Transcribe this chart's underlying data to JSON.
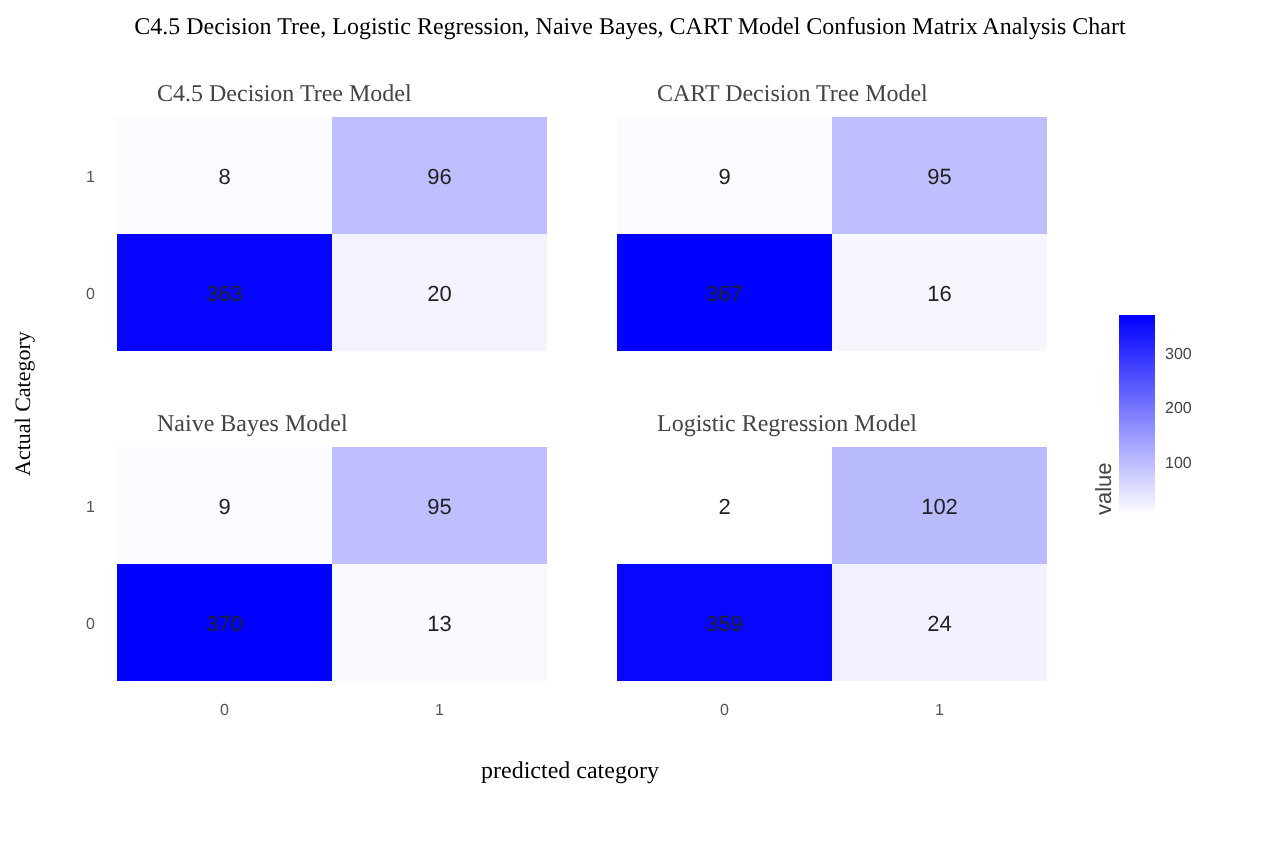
{
  "chart_data": [
    {
      "type": "heatmap",
      "title": "C4.5 Decision Tree Model",
      "annotations": [
        "C4.5 Decision Tree, Logistic Regression, Naive Bayes, CART Model Confusion Matrix Analysis Chart"
      ],
      "ylabel": "Actual Category",
      "categories": [
        "0",
        "1"
      ],
      "y_categories": [
        "1",
        "0"
      ],
      "cells": [
        [
          8,
          96
        ],
        [
          363,
          20
        ]
      ],
      "data_labels": true,
      "tick_labels": "y"
    },
    {
      "type": "heatmap",
      "title": "CART Decision Tree Model",
      "categories": [
        "0",
        "1"
      ],
      "y_categories": [
        "1",
        "0"
      ],
      "cells": [
        [
          9,
          95
        ],
        [
          367,
          16
        ]
      ],
      "data_labels": true,
      "tick_labels": false
    },
    {
      "type": "heatmap",
      "title": "Naive Bayes Model",
      "categories": [
        "0",
        "1"
      ],
      "y_categories": [
        "1",
        "0"
      ],
      "cells": [
        [
          9,
          95
        ],
        [
          370,
          13
        ]
      ],
      "data_labels": true
    },
    {
      "type": "heatmap",
      "title": "Logistic Regression Model",
      "xlabel": "predicted category",
      "categories": [
        "0",
        "1"
      ],
      "y_categories": [
        "1",
        "0"
      ],
      "cells": [
        [
          2,
          102
        ],
        [
          359,
          24
        ]
      ],
      "data_labels": true,
      "clim": [
        2,
        370
      ],
      "cticks": [
        100,
        200,
        300
      ],
      "clabel": "value",
      "tick_labels": "x"
    }
  ]
}
